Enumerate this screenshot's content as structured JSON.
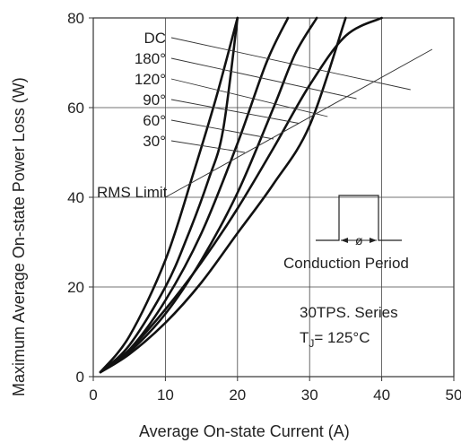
{
  "chart_data": {
    "type": "line",
    "xlabel": "Average On-state Current (A)",
    "ylabel": "Maximum Average On-state Power Loss (W)",
    "xlim": [
      0,
      50
    ],
    "ylim": [
      0,
      80
    ],
    "x_ticks": [
      "0",
      "10",
      "20",
      "30",
      "40",
      "50"
    ],
    "y_ticks": [
      "0",
      "20",
      "40",
      "60",
      "80"
    ],
    "grid": true,
    "series": [
      {
        "name": "DC",
        "points": [
          [
            1,
            1
          ],
          [
            5,
            6
          ],
          [
            10,
            15
          ],
          [
            15,
            25.5
          ],
          [
            20,
            37.5
          ],
          [
            25,
            51
          ],
          [
            30,
            65
          ],
          [
            35,
            76
          ],
          [
            40,
            80
          ]
        ]
      },
      {
        "name": "180°",
        "points": [
          [
            1,
            1
          ],
          [
            5,
            5
          ],
          [
            10,
            12
          ],
          [
            15,
            21
          ],
          [
            20,
            32
          ],
          [
            25,
            43
          ],
          [
            30,
            56
          ],
          [
            35,
            80
          ]
        ]
      },
      {
        "name": "120°",
        "points": [
          [
            1,
            1
          ],
          [
            5,
            5.5
          ],
          [
            10,
            14
          ],
          [
            15,
            26
          ],
          [
            20,
            41
          ],
          [
            25,
            60
          ],
          [
            28,
            72
          ],
          [
            31,
            80
          ]
        ]
      },
      {
        "name": "90°",
        "points": [
          [
            1,
            1
          ],
          [
            5,
            6
          ],
          [
            10,
            17
          ],
          [
            15,
            32
          ],
          [
            20,
            52
          ],
          [
            24,
            70
          ],
          [
            27,
            80
          ]
        ]
      },
      {
        "name": "60°",
        "points": [
          [
            1,
            1
          ],
          [
            5,
            7
          ],
          [
            10,
            20
          ],
          [
            13,
            31
          ],
          [
            16,
            44
          ],
          [
            18,
            55
          ],
          [
            20,
            80
          ]
        ]
      },
      {
        "name": "30°",
        "points": [
          [
            1,
            1
          ],
          [
            5,
            9
          ],
          [
            10,
            26
          ],
          [
            14,
            46
          ],
          [
            17,
            62
          ],
          [
            20,
            80
          ]
        ]
      }
    ],
    "rms_limit": {
      "label": "RMS Limit",
      "points": [
        [
          10,
          40
        ],
        [
          47,
          73
        ]
      ]
    },
    "inset": {
      "label": "Conduction Period",
      "symbol": "ø"
    },
    "annotation": {
      "line1": "30TPS. Series",
      "line2_prefix": "T",
      "line2_sub": "J",
      "line2_suffix": "= 125°C"
    }
  }
}
